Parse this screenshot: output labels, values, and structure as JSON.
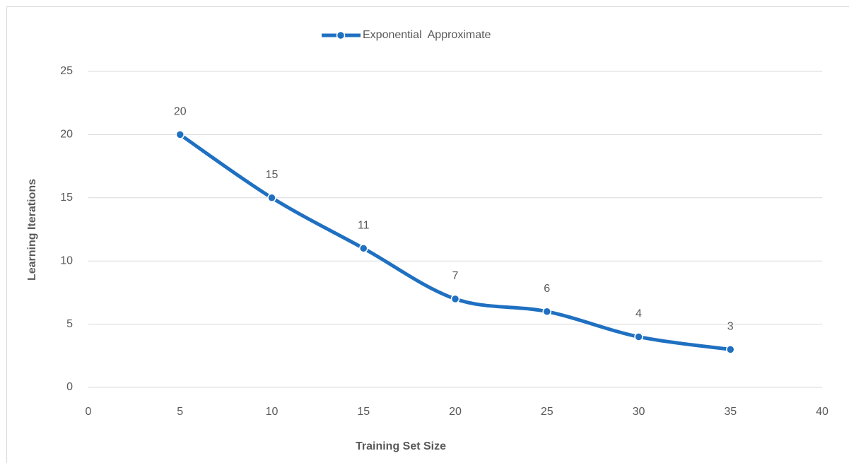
{
  "chart_data": {
    "type": "line",
    "x_label": "Training Set Size",
    "y_label": "Learning Iterations",
    "x": [
      5,
      10,
      15,
      20,
      25,
      30,
      35
    ],
    "series": [
      {
        "name": "Exponential  Approximate",
        "color": "#1f70c1",
        "values": [
          20,
          15,
          11,
          7,
          6,
          4,
          3
        ]
      }
    ],
    "xlim": [
      0,
      40
    ],
    "xticks": [
      0,
      5,
      10,
      15,
      20,
      25,
      30,
      35,
      40
    ],
    "ylim": [
      0,
      25
    ],
    "yticks": [
      0,
      5,
      10,
      15,
      20,
      25
    ],
    "grid": true,
    "legend": "top",
    "smooth": true
  }
}
